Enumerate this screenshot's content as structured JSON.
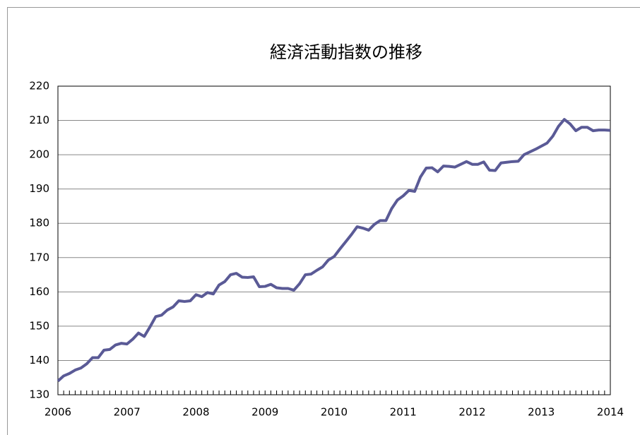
{
  "chart_data": {
    "type": "line",
    "title": "経済活動指数の推移",
    "categories": [
      "2006",
      null,
      null,
      null,
      null,
      null,
      null,
      null,
      null,
      null,
      null,
      null,
      "2007",
      null,
      null,
      null,
      null,
      null,
      null,
      null,
      null,
      null,
      null,
      null,
      "2008",
      null,
      null,
      null,
      null,
      null,
      null,
      null,
      null,
      null,
      null,
      null,
      "2009",
      null,
      null,
      null,
      null,
      null,
      null,
      null,
      null,
      null,
      null,
      null,
      "2010",
      null,
      null,
      null,
      null,
      null,
      null,
      null,
      null,
      null,
      null,
      null,
      "2011",
      null,
      null,
      null,
      null,
      null,
      null,
      null,
      null,
      null,
      null,
      null,
      "2012",
      null,
      null,
      null,
      null,
      null,
      null,
      null,
      null,
      null,
      null,
      null,
      "2013",
      null,
      null,
      null,
      null,
      null,
      null,
      null,
      null,
      null,
      null,
      null,
      "2014"
    ],
    "values": [
      134,
      135.5,
      136.2,
      137.2,
      137.8,
      139,
      140.8,
      140.8,
      143,
      143.2,
      144.5,
      145,
      144.8,
      146.2,
      148,
      147,
      149.8,
      152.8,
      153.2,
      154.7,
      155.6,
      157.4,
      157.2,
      157.4,
      159.2,
      158.6,
      159.8,
      159.4,
      162,
      163,
      165,
      165.4,
      164.3,
      164.2,
      164.4,
      161.5,
      161.6,
      162.2,
      161.2,
      161,
      161,
      160.5,
      162.4,
      165,
      165.2,
      166.3,
      167.3,
      169.3,
      170.3,
      172.5,
      174.6,
      176.7,
      179,
      178.6,
      178,
      179.7,
      180.8,
      180.8,
      184.3,
      186.8,
      188,
      189.6,
      189.3,
      193.5,
      196.1,
      196.2,
      195,
      196.7,
      196.6,
      196.4,
      197.2,
      198,
      197.2,
      197.2,
      197.9,
      195.5,
      195.4,
      197.6,
      197.8,
      198,
      198.1,
      200,
      200.8,
      201.6,
      202.5,
      203.4,
      205.4,
      208.3,
      210.3,
      209,
      207,
      208,
      208,
      207,
      207.2,
      207.2,
      207.1
    ],
    "color": "#5a5a96",
    "ylim": [
      130,
      220
    ],
    "yticks": [
      130,
      140,
      150,
      160,
      170,
      180,
      190,
      200,
      210,
      220
    ],
    "grid": true
  }
}
